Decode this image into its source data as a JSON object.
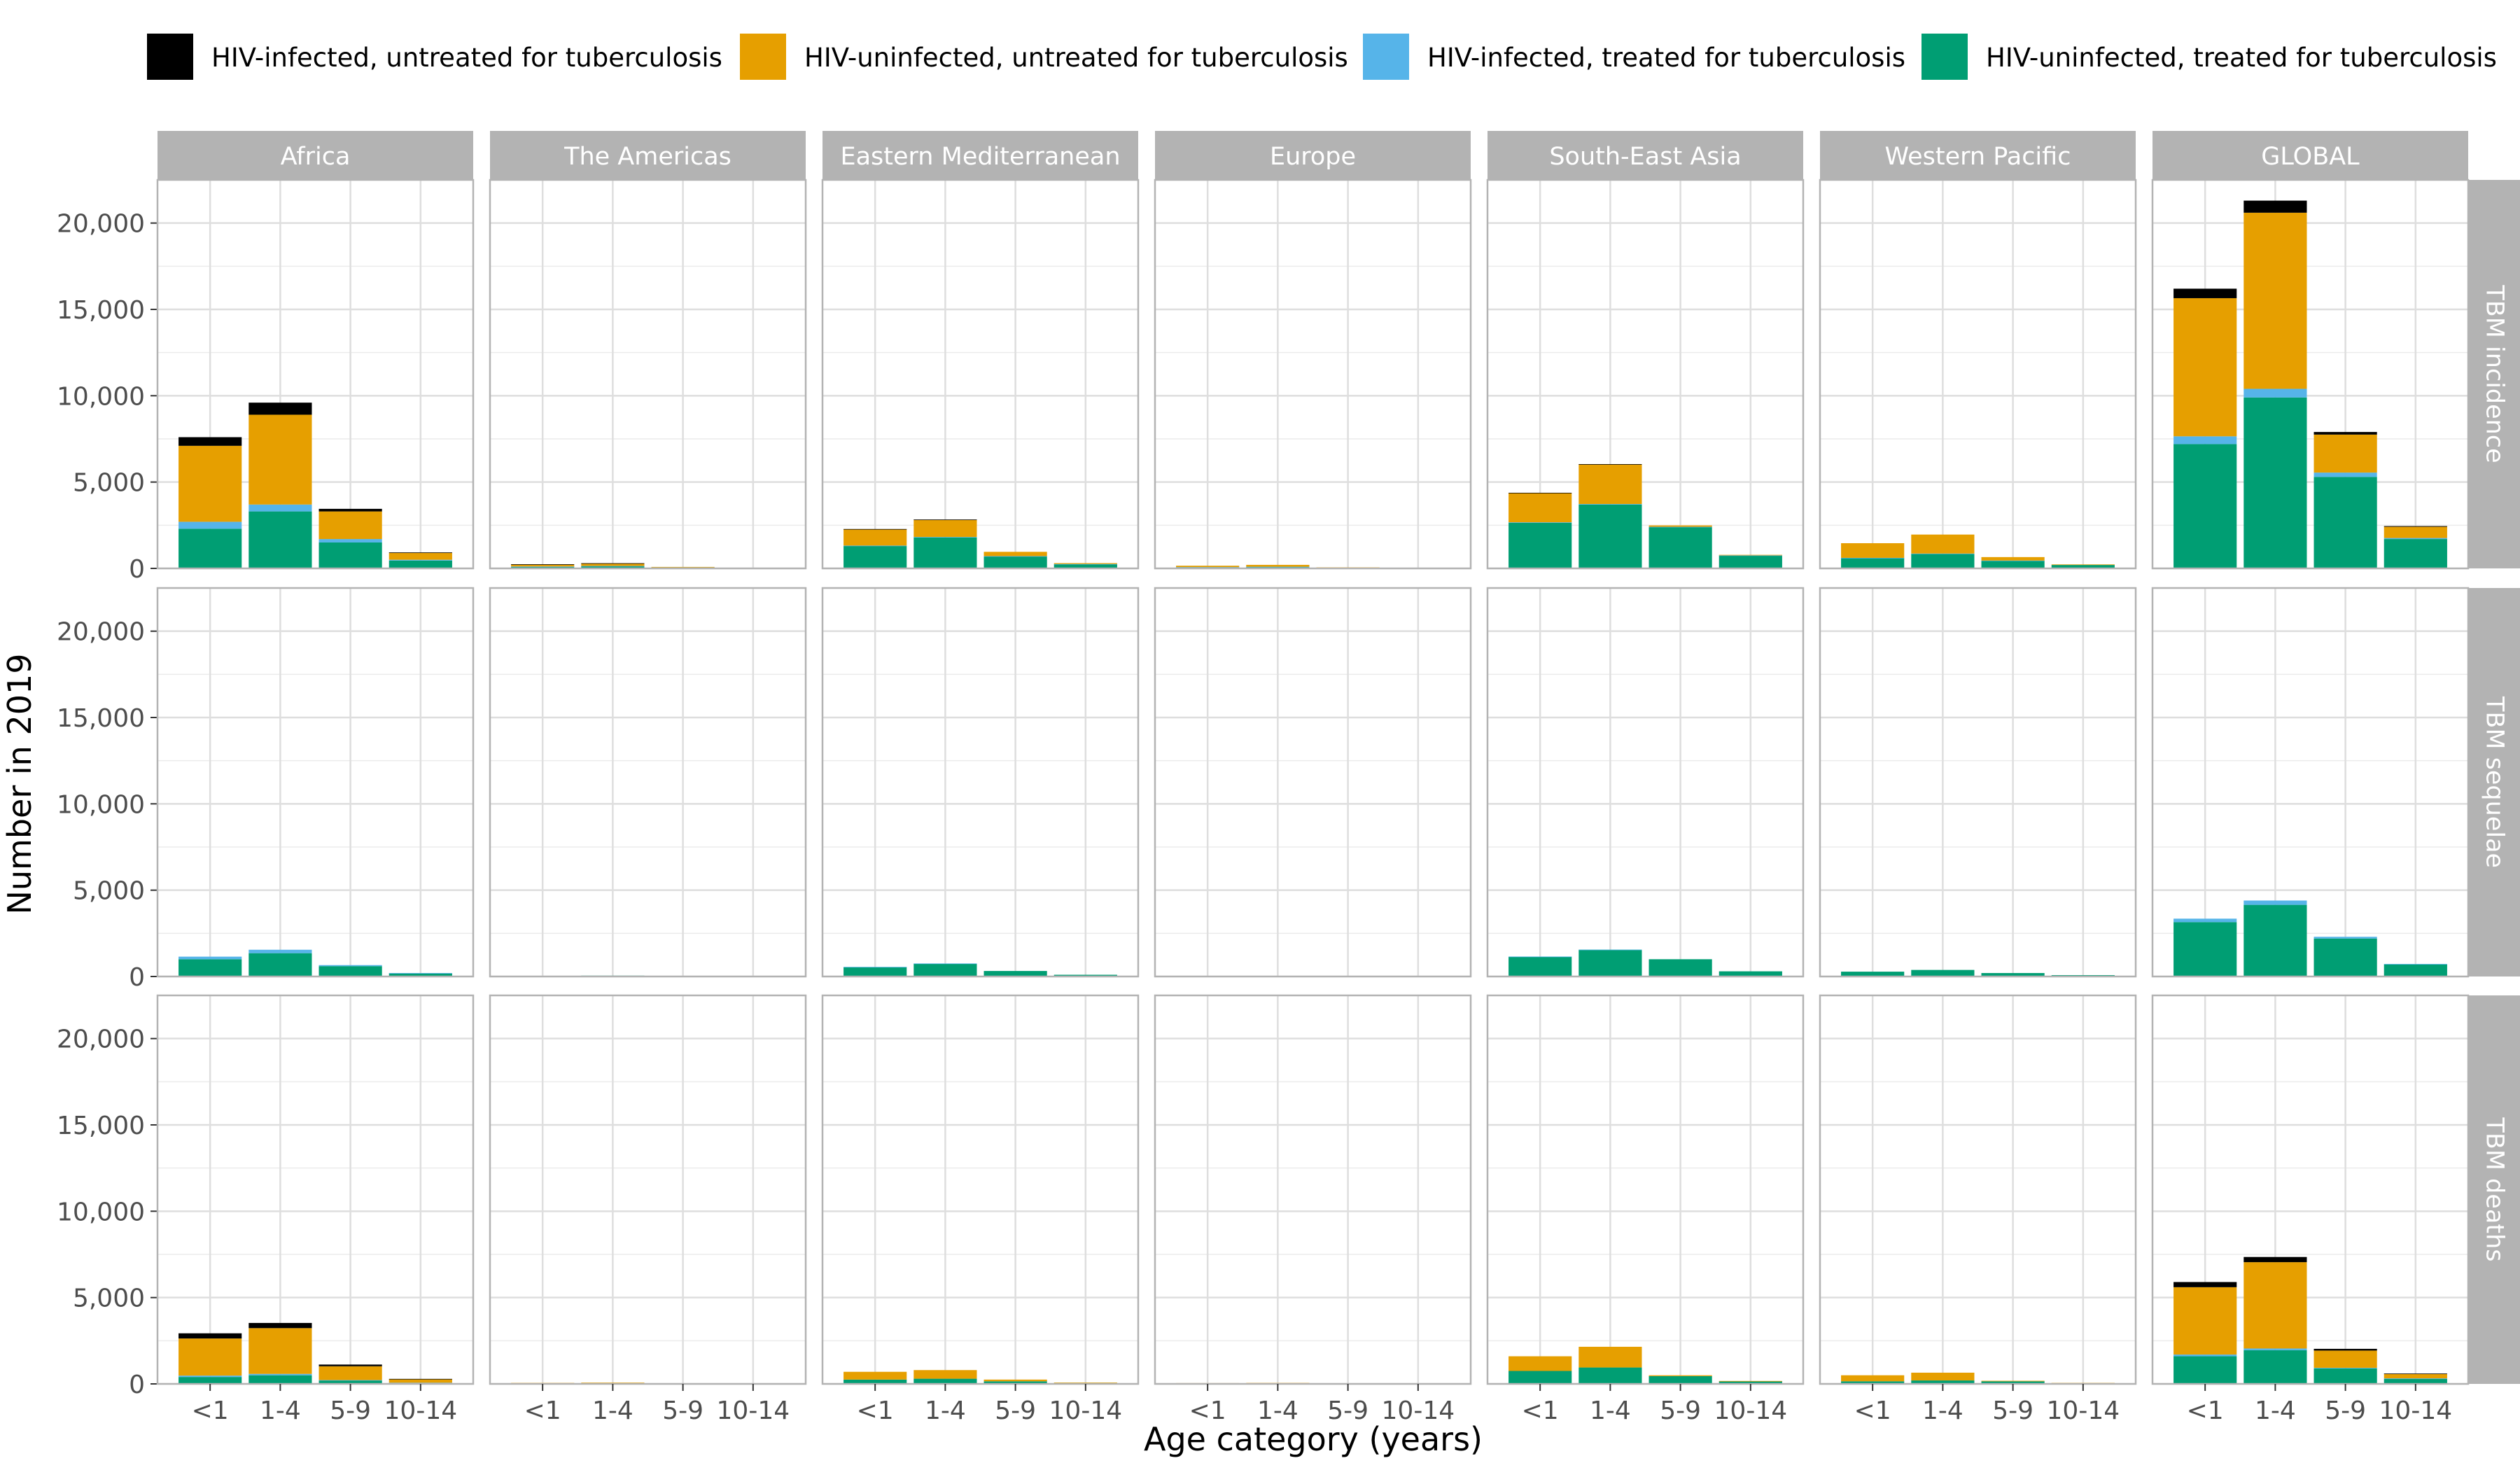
{
  "chart_data": {
    "type": "bar",
    "stacked": true,
    "xlabel": "Age category (years)",
    "ylabel": "Number in 2019",
    "ylim": [
      0,
      22500
    ],
    "y_ticks": [
      0,
      5000,
      10000,
      15000,
      20000
    ],
    "y_tick_labels": [
      "0",
      "5,000",
      "10,000",
      "15,000",
      "20,000"
    ],
    "categories": [
      "<1",
      "1-4",
      "5-9",
      "10-14"
    ],
    "regions": [
      "Africa",
      "The Americas",
      "Eastern Mediterranean",
      "Europe",
      "South-East Asia",
      "Western Pacific",
      "GLOBAL"
    ],
    "outcomes": [
      "TBM incidence",
      "TBM sequelae",
      "TBM deaths"
    ],
    "legend": {
      "placement": "top",
      "entries": [
        {
          "name": "HIV-infected, untreated for tuberculosis",
          "color": "#000000"
        },
        {
          "name": "HIV-uninfected, untreated for tuberculosis",
          "color": "#E69F00"
        },
        {
          "name": "HIV-infected, treated for tuberculosis",
          "color": "#56B4E9"
        },
        {
          "name": "HIV-uninfected, treated for tuberculosis",
          "color": "#009E73"
        }
      ]
    },
    "stack_order": [
      "HIV-uninfected, treated for tuberculosis",
      "HIV-infected, treated for tuberculosis",
      "HIV-uninfected, untreated for tuberculosis",
      "HIV-infected, untreated for tuberculosis"
    ],
    "series_colors": [
      "#009E73",
      "#56B4E9",
      "#E69F00",
      "#000000"
    ],
    "grid": true,
    "values": {
      "TBM incidence": {
        "Africa": [
          [
            2300,
            400,
            4400,
            500
          ],
          [
            3300,
            400,
            5200,
            700
          ],
          [
            1500,
            200,
            1600,
            150
          ],
          [
            450,
            50,
            400,
            30
          ]
        ],
        "The Americas": [
          [
            100,
            10,
            120,
            10
          ],
          [
            130,
            10,
            150,
            10
          ],
          [
            50,
            5,
            30,
            0
          ],
          [
            15,
            0,
            10,
            0
          ]
        ],
        "Eastern Mediterranean": [
          [
            1300,
            20,
            950,
            10
          ],
          [
            1800,
            20,
            1000,
            10
          ],
          [
            700,
            10,
            250,
            0
          ],
          [
            250,
            5,
            50,
            0
          ]
        ],
        "Europe": [
          [
            70,
            5,
            80,
            0
          ],
          [
            90,
            5,
            110,
            0
          ],
          [
            40,
            0,
            20,
            0
          ],
          [
            10,
            0,
            5,
            0
          ]
        ],
        "South-East Asia": [
          [
            2650,
            20,
            1700,
            10
          ],
          [
            3700,
            30,
            2300,
            10
          ],
          [
            2400,
            10,
            80,
            0
          ],
          [
            750,
            5,
            30,
            0
          ]
        ],
        "Western Pacific": [
          [
            600,
            10,
            850,
            0
          ],
          [
            850,
            10,
            1100,
            0
          ],
          [
            450,
            5,
            200,
            0
          ],
          [
            200,
            0,
            30,
            0
          ]
        ],
        "GLOBAL": [
          [
            7200,
            450,
            8000,
            550
          ],
          [
            9900,
            500,
            10200,
            700
          ],
          [
            5300,
            250,
            2200,
            150
          ],
          [
            1700,
            60,
            650,
            40
          ]
        ]
      },
      "TBM sequelae": {
        "Africa": [
          [
            1000,
            150,
            0,
            0
          ],
          [
            1350,
            200,
            0,
            0
          ],
          [
            600,
            60,
            0,
            0
          ],
          [
            180,
            20,
            0,
            0
          ]
        ],
        "The Americas": [
          [
            40,
            0,
            0,
            0
          ],
          [
            50,
            0,
            0,
            0
          ],
          [
            25,
            0,
            0,
            0
          ],
          [
            10,
            0,
            0,
            0
          ]
        ],
        "Eastern Mediterranean": [
          [
            550,
            5,
            0,
            0
          ],
          [
            750,
            5,
            0,
            0
          ],
          [
            320,
            0,
            0,
            0
          ],
          [
            100,
            0,
            0,
            0
          ]
        ],
        "Europe": [
          [
            30,
            0,
            0,
            0
          ],
          [
            40,
            0,
            0,
            0
          ],
          [
            20,
            0,
            0,
            0
          ],
          [
            5,
            0,
            0,
            0
          ]
        ],
        "South-East Asia": [
          [
            1150,
            5,
            0,
            0
          ],
          [
            1550,
            5,
            0,
            0
          ],
          [
            1000,
            0,
            0,
            0
          ],
          [
            300,
            0,
            0,
            0
          ]
        ],
        "Western Pacific": [
          [
            280,
            0,
            0,
            0
          ],
          [
            380,
            0,
            0,
            0
          ],
          [
            200,
            0,
            0,
            0
          ],
          [
            80,
            0,
            0,
            0
          ]
        ],
        "GLOBAL": [
          [
            3150,
            200,
            0,
            0
          ],
          [
            4150,
            250,
            0,
            0
          ],
          [
            2200,
            100,
            0,
            0
          ],
          [
            700,
            30,
            0,
            0
          ]
        ]
      },
      "TBM deaths": {
        "Africa": [
          [
            400,
            80,
            2150,
            300
          ],
          [
            500,
            80,
            2650,
            300
          ],
          [
            200,
            20,
            800,
            100
          ],
          [
            60,
            10,
            200,
            20
          ]
        ],
        "The Americas": [
          [
            20,
            0,
            40,
            0
          ],
          [
            25,
            0,
            50,
            0
          ],
          [
            10,
            0,
            10,
            0
          ],
          [
            5,
            0,
            5,
            0
          ]
        ],
        "Eastern Mediterranean": [
          [
            250,
            0,
            450,
            0
          ],
          [
            300,
            0,
            500,
            0
          ],
          [
            150,
            0,
            100,
            0
          ],
          [
            50,
            0,
            30,
            0
          ]
        ],
        "Europe": [
          [
            15,
            0,
            30,
            0
          ],
          [
            20,
            0,
            40,
            0
          ],
          [
            10,
            0,
            5,
            0
          ],
          [
            5,
            0,
            0,
            0
          ]
        ],
        "South-East Asia": [
          [
            750,
            0,
            850,
            0
          ],
          [
            950,
            0,
            1200,
            0
          ],
          [
            450,
            0,
            50,
            0
          ],
          [
            150,
            0,
            20,
            0
          ]
        ],
        "Western Pacific": [
          [
            150,
            0,
            350,
            0
          ],
          [
            200,
            0,
            450,
            0
          ],
          [
            150,
            0,
            30,
            0
          ],
          [
            50,
            0,
            10,
            0
          ]
        ],
        "GLOBAL": [
          [
            1600,
            100,
            3900,
            300
          ],
          [
            1950,
            100,
            5000,
            300
          ],
          [
            900,
            30,
            1000,
            100
          ],
          [
            300,
            20,
            260,
            20
          ]
        ]
      }
    }
  }
}
